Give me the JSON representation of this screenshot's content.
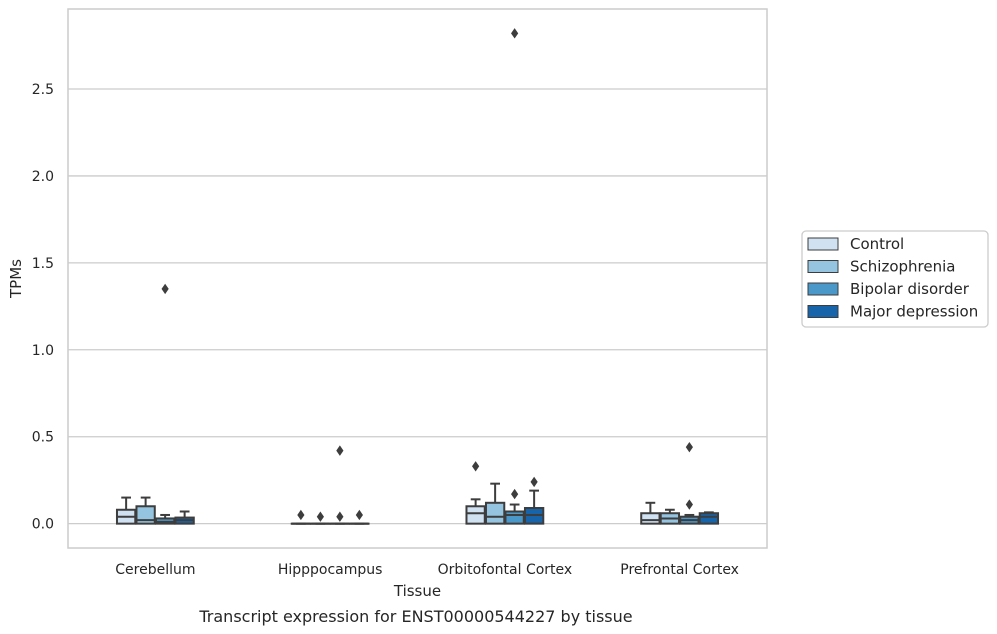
{
  "chart_data": {
    "type": "box",
    "title": "",
    "caption": "Transcript expression for ENST00000544227 by tissue",
    "xlabel": "Tissue",
    "ylabel": "TPMs",
    "ylim": [
      -0.14,
      2.96
    ],
    "yticks": [
      "0.0",
      "0.5",
      "1.0",
      "1.5",
      "2.0",
      "2.5"
    ],
    "ytick_values": [
      0,
      0.5,
      1.0,
      1.5,
      2.0,
      2.5
    ],
    "grid": "horizontal",
    "legend_position": "right",
    "categories": [
      "Cerebellum",
      "Hipppocampus",
      "Orbitofontal Cortex",
      "Prefrontal Cortex"
    ],
    "series": [
      {
        "name": "Control",
        "color": "#d0e1f2",
        "boxes": [
          {
            "q1": 0.0,
            "median": 0.04,
            "q3": 0.08,
            "whislo": 0.0,
            "whishi": 0.15,
            "fliers": []
          },
          {
            "q1": 0.0,
            "median": 0.0,
            "q3": 0.0,
            "whislo": 0.0,
            "whishi": 0.0,
            "fliers": [
              0.05
            ]
          },
          {
            "q1": 0.0,
            "median": 0.06,
            "q3": 0.1,
            "whislo": 0.0,
            "whishi": 0.14,
            "fliers": [
              0.33
            ]
          },
          {
            "q1": 0.0,
            "median": 0.02,
            "q3": 0.06,
            "whislo": 0.0,
            "whishi": 0.12,
            "fliers": []
          }
        ]
      },
      {
        "name": "Schizophrenia",
        "color": "#94c4df",
        "boxes": [
          {
            "q1": 0.0,
            "median": 0.02,
            "q3": 0.1,
            "whislo": 0.0,
            "whishi": 0.15,
            "fliers": []
          },
          {
            "q1": 0.0,
            "median": 0.0,
            "q3": 0.0,
            "whislo": 0.0,
            "whishi": 0.0,
            "fliers": [
              0.04
            ]
          },
          {
            "q1": 0.0,
            "median": 0.04,
            "q3": 0.12,
            "whislo": 0.0,
            "whishi": 0.23,
            "fliers": []
          },
          {
            "q1": 0.0,
            "median": 0.03,
            "q3": 0.06,
            "whislo": 0.0,
            "whishi": 0.08,
            "fliers": []
          }
        ]
      },
      {
        "name": "Bipolar disorder",
        "color": "#4a98c9",
        "boxes": [
          {
            "q1": 0.0,
            "median": 0.01,
            "q3": 0.03,
            "whislo": 0.0,
            "whishi": 0.05,
            "fliers": [
              1.35
            ]
          },
          {
            "q1": 0.0,
            "median": 0.0,
            "q3": 0.0,
            "whislo": 0.0,
            "whishi": 0.0,
            "fliers": [
              0.42,
              0.04
            ]
          },
          {
            "q1": 0.0,
            "median": 0.05,
            "q3": 0.07,
            "whislo": 0.0,
            "whishi": 0.11,
            "fliers": [
              0.17,
              2.82
            ]
          },
          {
            "q1": 0.0,
            "median": 0.02,
            "q3": 0.04,
            "whislo": 0.0,
            "whishi": 0.05,
            "fliers": [
              0.44,
              0.11
            ]
          }
        ]
      },
      {
        "name": "Major depression",
        "color": "#1764ab",
        "boxes": [
          {
            "q1": 0.0,
            "median": 0.02,
            "q3": 0.035,
            "whislo": 0.0,
            "whishi": 0.07,
            "fliers": []
          },
          {
            "q1": 0.0,
            "median": 0.0,
            "q3": 0.0,
            "whislo": 0.0,
            "whishi": 0.0,
            "fliers": [
              0.05
            ]
          },
          {
            "q1": 0.0,
            "median": 0.05,
            "q3": 0.09,
            "whislo": 0.0,
            "whishi": 0.19,
            "fliers": [
              0.24
            ]
          },
          {
            "q1": 0.0,
            "median": 0.04,
            "q3": 0.06,
            "whislo": 0.0,
            "whishi": 0.065,
            "fliers": []
          }
        ]
      }
    ]
  }
}
